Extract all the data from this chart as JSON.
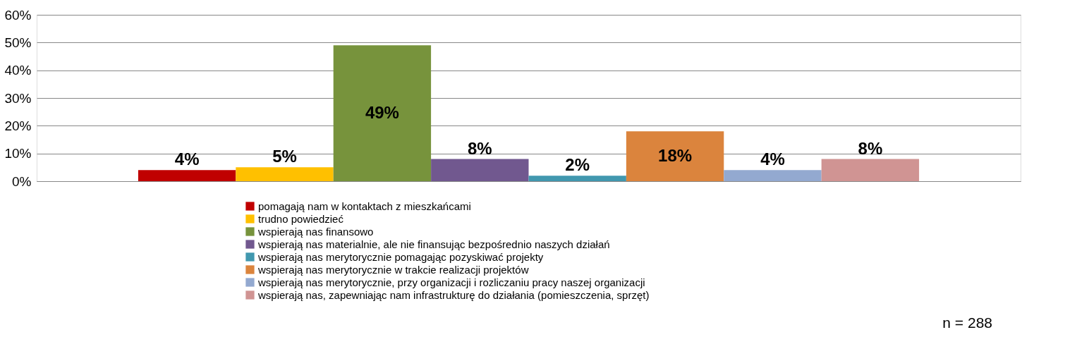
{
  "chart_data": {
    "type": "bar",
    "categories": [
      null
    ],
    "series": [
      {
        "name": "pomagają nam w kontaktach z mieszkańcami",
        "color": "#c00000",
        "values": [
          4
        ],
        "value_labels": [
          "4%"
        ]
      },
      {
        "name": "trudno powiedzieć",
        "color": "#ffc000",
        "values": [
          5
        ],
        "value_labels": [
          "5%"
        ]
      },
      {
        "name": "wspierają nas finansowo",
        "color": "#77933c",
        "values": [
          49
        ],
        "value_labels": [
          "49%"
        ]
      },
      {
        "name": "wspierają nas materialnie, ale nie finansując bezpośrednio naszych działań",
        "color": "#71588f",
        "values": [
          8
        ],
        "value_labels": [
          "8%"
        ]
      },
      {
        "name": "wspierają nas merytorycznie pomagając pozyskiwać projekty",
        "color": "#4198af",
        "values": [
          2
        ],
        "value_labels": [
          "2%"
        ]
      },
      {
        "name": "wspierają nas merytorycznie w trakcie realizacji projektów",
        "color": "#db843d",
        "values": [
          18
        ],
        "value_labels": [
          "18%"
        ]
      },
      {
        "name": "wspierają nas merytorycznie, przy organizacji i rozliczaniu pracy naszej organizacji",
        "color": "#93a9d0",
        "values": [
          4
        ],
        "value_labels": [
          "4%"
        ]
      },
      {
        "name": "wspierają nas, zapewniając nam infrastrukturę do działania (pomieszczenia, sprzęt)",
        "color": "#d09493",
        "values": [
          8
        ],
        "value_labels": [
          "8%"
        ]
      }
    ],
    "ylim": [
      0,
      60
    ],
    "yticks": [
      {
        "value": 0,
        "label": "0%"
      },
      {
        "value": 10,
        "label": "10%"
      },
      {
        "value": 20,
        "label": "20%"
      },
      {
        "value": 30,
        "label": "30%"
      },
      {
        "value": 40,
        "label": "40%"
      },
      {
        "value": 50,
        "label": "50%"
      },
      {
        "value": 60,
        "label": "60%"
      }
    ],
    "grid": "y",
    "legend": "bottom",
    "tick_labels": "y",
    "annotations": [
      "n = 288"
    ]
  }
}
